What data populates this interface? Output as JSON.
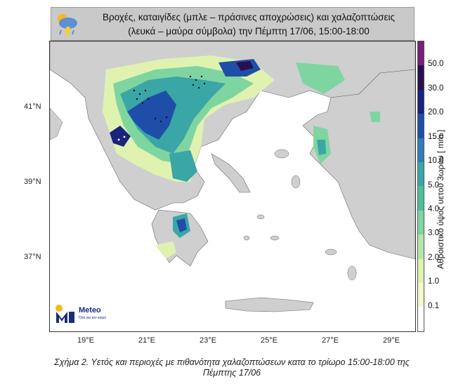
{
  "title": {
    "line1": "Βροχές, καταιγίδες (μπλε – πράσινες αποχρώσεις) και χαλαζοπτώσεις",
    "line2": "(λευκά – μαύρα σύμβολα) την Πέμπτη 17/06, 15:00-18:00",
    "icon": "rain-lightning-icon"
  },
  "axes": {
    "lat_ticks": [
      "41°N",
      "39°N",
      "37°N"
    ],
    "lon_ticks": [
      "19°E",
      "21°E",
      "23°E",
      "25°E",
      "27°E",
      "29°E"
    ]
  },
  "colorbar": {
    "title": "Αθροιστικό ύψος υετού 3ωρου [ mm ]",
    "labels": [
      "50.0",
      "30.0",
      "20.0",
      "15.0",
      "10.0",
      "5.0",
      "4.0",
      "3.0",
      "2.0",
      "1.0",
      "0.1"
    ],
    "colors": [
      "#7a1e7a",
      "#2a0f4f",
      "#1a237e",
      "#1f4ea8",
      "#2f7dba",
      "#3aa6a6",
      "#4fbf9a",
      "#7fd5a0",
      "#b5e7a8",
      "#e0f2b0",
      "#f5f9d0",
      "#ffffff"
    ]
  },
  "logo": {
    "name": "Meteo",
    "tagline": "Όλα για τον καιρό"
  },
  "caption": {
    "line1": "Σχήμα 2. Υετός και περιοχές με πιθανότητα χαλαζοπτώσεων κατα το τρίωρο 15:00-18:00 της",
    "line2": "Πέμπτης 17/06"
  }
}
